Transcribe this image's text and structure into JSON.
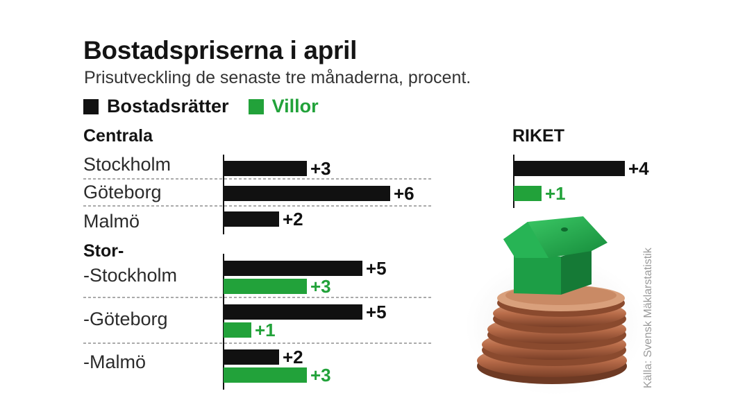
{
  "title": "Bostadspriserna i april",
  "subtitle": "Prisutveckling de senaste tre månaderna, procent.",
  "source": "Källa: Svensk Mäklarstatistik",
  "colors": {
    "bostadsratter": "#111111",
    "villor": "#22a23a"
  },
  "legend": [
    {
      "label": "Bostadsrätter",
      "color": "#111111"
    },
    {
      "label": "Villor",
      "color": "#22a23a"
    }
  ],
  "sections": {
    "centrala": "Centrala",
    "stor": "Stor-",
    "riket": "RIKET"
  },
  "image": {
    "description_icon": "coins-house-photo"
  },
  "chart_data": [
    {
      "type": "bar",
      "group": "Centrala",
      "categories": [
        "Stockholm",
        "Göteborg",
        "Malmö"
      ],
      "series": [
        {
          "name": "Bostadsrätter",
          "values": [
            3,
            6,
            2
          ],
          "labels": [
            "+3",
            "+6",
            "+2"
          ]
        }
      ]
    },
    {
      "type": "bar",
      "group": "Stor-",
      "categories": [
        "-Stockholm",
        "-Göteborg",
        "-Malmö"
      ],
      "series": [
        {
          "name": "Bostadsrätter",
          "values": [
            5,
            5,
            2
          ],
          "labels": [
            "+5",
            "+5",
            "+2"
          ]
        },
        {
          "name": "Villor",
          "values": [
            3,
            1,
            3
          ],
          "labels": [
            "+3",
            "+1",
            "+3"
          ]
        }
      ]
    },
    {
      "type": "bar",
      "group": "RIKET",
      "categories": [
        "RIKET"
      ],
      "series": [
        {
          "name": "Bostadsrätter",
          "values": [
            4
          ],
          "labels": [
            "+4"
          ]
        },
        {
          "name": "Villor",
          "values": [
            1
          ],
          "labels": [
            "+1"
          ]
        }
      ]
    }
  ]
}
